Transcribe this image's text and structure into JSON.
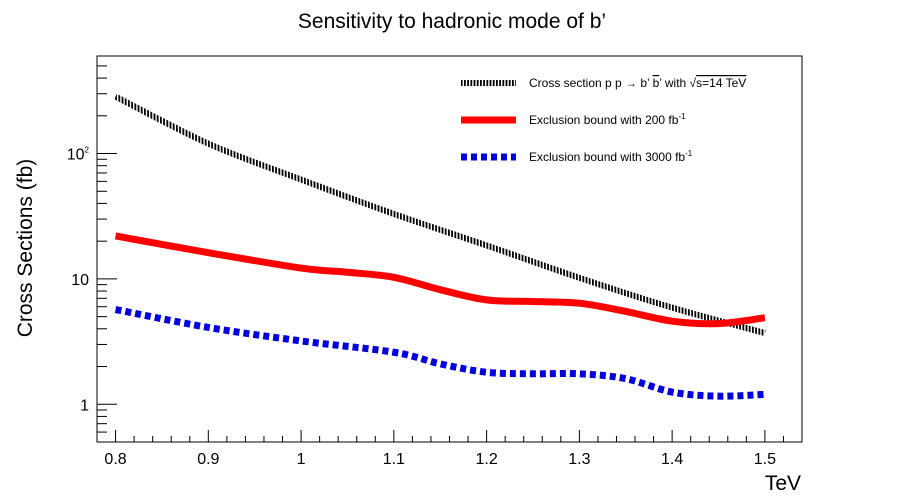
{
  "chart_data": {
    "type": "line",
    "title": "Sensitivity to hadronic mode of b’",
    "xlabel": "TeV",
    "ylabel": "Cross Sections (fb)",
    "xlim": [
      0.78,
      1.54
    ],
    "ylim": [
      0.5,
      600
    ],
    "yscale": "log",
    "grid": false,
    "legend_position": "top-right",
    "x_ticks": [
      {
        "value": 0.8,
        "label": "0.8"
      },
      {
        "value": 0.9,
        "label": "0.9"
      },
      {
        "value": 1.0,
        "label": "1"
      },
      {
        "value": 1.1,
        "label": "1.1"
      },
      {
        "value": 1.2,
        "label": "1.2"
      },
      {
        "value": 1.3,
        "label": "1.3"
      },
      {
        "value": 1.4,
        "label": "1.4"
      },
      {
        "value": 1.5,
        "label": "1.5"
      }
    ],
    "y_major_ticks": [
      {
        "value": 1,
        "label": "1",
        "sup": ""
      },
      {
        "value": 10,
        "label": "10",
        "sup": ""
      },
      {
        "value": 100,
        "label": "10",
        "sup": "2"
      }
    ],
    "series": [
      {
        "name": "Cross section p p → b’ b̄’ with √s=14 TeV",
        "legend": {
          "main": "Cross section p p → b’ ",
          "bbar": "b",
          "bbar_sup": "’",
          "mid": " with ",
          "sqrt": "√",
          "s_expr": "s=14 TeV"
        },
        "color": "#000000",
        "style": "hatched",
        "x": [
          0.8,
          0.9,
          1.0,
          1.1,
          1.2,
          1.3,
          1.4,
          1.5
        ],
        "values": [
          285,
          120,
          62,
          33,
          18.5,
          10.2,
          5.9,
          3.7
        ]
      },
      {
        "name": "Exclusion bound with 200 fb-1",
        "legend": {
          "main": "Exclusion bound with  200 fb",
          "sup": "-1"
        },
        "color": "#ff0000",
        "style": "solid",
        "x": [
          0.8,
          0.9,
          1.0,
          1.05,
          1.1,
          1.15,
          1.2,
          1.25,
          1.3,
          1.35,
          1.4,
          1.45,
          1.5
        ],
        "values": [
          22,
          16.2,
          12.2,
          11.3,
          10.3,
          8.2,
          6.8,
          6.6,
          6.4,
          5.5,
          4.6,
          4.4,
          4.9
        ]
      },
      {
        "name": "Exclusion bound with 3000 fb-1",
        "legend": {
          "main": "Exclusion bound with 3000 fb",
          "sup": "-1"
        },
        "color": "#0000dd",
        "style": "dashed",
        "x": [
          0.8,
          0.9,
          1.0,
          1.1,
          1.15,
          1.2,
          1.25,
          1.3,
          1.35,
          1.4,
          1.45,
          1.5
        ],
        "values": [
          5.7,
          4.1,
          3.2,
          2.6,
          2.1,
          1.8,
          1.75,
          1.75,
          1.6,
          1.25,
          1.16,
          1.2
        ]
      }
    ]
  }
}
